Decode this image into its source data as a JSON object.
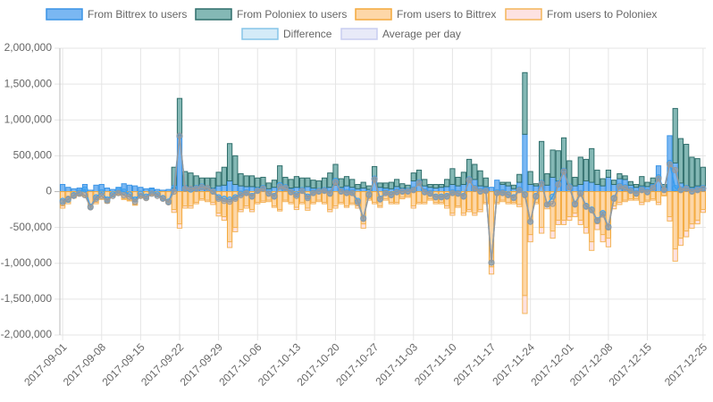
{
  "chart_data": {
    "type": "bar",
    "categories": [
      "2017-09-01",
      "2017-09-02",
      "2017-09-03",
      "2017-09-04",
      "2017-09-05",
      "2017-09-06",
      "2017-09-07",
      "2017-09-08",
      "2017-09-09",
      "2017-09-10",
      "2017-09-11",
      "2017-09-12",
      "2017-09-13",
      "2017-09-14",
      "2017-09-15",
      "2017-09-16",
      "2017-09-17",
      "2017-09-18",
      "2017-09-19",
      "2017-09-20",
      "2017-09-21",
      "2017-09-22",
      "2017-09-23",
      "2017-09-24",
      "2017-09-25",
      "2017-09-26",
      "2017-09-27",
      "2017-09-28",
      "2017-09-29",
      "2017-09-30",
      "2017-10-01",
      "2017-10-02",
      "2017-10-03",
      "2017-10-04",
      "2017-10-05",
      "2017-10-06",
      "2017-10-07",
      "2017-10-08",
      "2017-10-09",
      "2017-10-10",
      "2017-10-11",
      "2017-10-12",
      "2017-10-13",
      "2017-10-14",
      "2017-10-15",
      "2017-10-16",
      "2017-10-17",
      "2017-10-18",
      "2017-10-19",
      "2017-10-20",
      "2017-10-21",
      "2017-10-22",
      "2017-10-23",
      "2017-10-24",
      "2017-10-25",
      "2017-10-26",
      "2017-10-27",
      "2017-10-28",
      "2017-10-29",
      "2017-10-30",
      "2017-10-31",
      "2017-11-01",
      "2017-11-02",
      "2017-11-03",
      "2017-11-04",
      "2017-11-05",
      "2017-11-06",
      "2017-11-07",
      "2017-11-08",
      "2017-11-09",
      "2017-11-10",
      "2017-11-11",
      "2017-11-12",
      "2017-11-13",
      "2017-11-14",
      "2017-11-15",
      "2017-11-16",
      "2017-11-17",
      "2017-11-18",
      "2017-11-19",
      "2017-11-20",
      "2017-11-21",
      "2017-11-22",
      "2017-11-23",
      "2017-11-24",
      "2017-11-25",
      "2017-11-26",
      "2017-11-27",
      "2017-11-28",
      "2017-11-29",
      "2017-11-30",
      "2017-12-01",
      "2017-12-02",
      "2017-12-03",
      "2017-12-04",
      "2017-12-05",
      "2017-12-06",
      "2017-12-07",
      "2017-12-08",
      "2017-12-09",
      "2017-12-10",
      "2017-12-11",
      "2017-12-12",
      "2017-12-13",
      "2017-12-14",
      "2017-12-15",
      "2017-12-16",
      "2017-12-17",
      "2017-12-18",
      "2017-12-19",
      "2017-12-20",
      "2017-12-21",
      "2017-12-22",
      "2017-12-23",
      "2017-12-24",
      "2017-12-25"
    ],
    "xticks": [
      "2017-09-01",
      "2017-09-08",
      "2017-09-15",
      "2017-09-22",
      "2017-09-29",
      "2017-10-06",
      "2017-10-13",
      "2017-10-20",
      "2017-10-27",
      "2017-11-03",
      "2017-11-10",
      "2017-11-17",
      "2017-11-24",
      "2017-12-01",
      "2017-12-08",
      "2017-12-15",
      "2017-12-25"
    ],
    "ylim": [
      -2000000,
      2000000
    ],
    "yticks": [
      {
        "value": -2000000,
        "label": "-2,000,000"
      },
      {
        "value": -1500000,
        "label": "-1,500,000"
      },
      {
        "value": -1000000,
        "label": "-1,000,000"
      },
      {
        "value": -500000,
        "label": "-500,000"
      },
      0,
      {
        "value": 500000,
        "label": "500,000"
      },
      {
        "value": 1000000,
        "label": "1,000,000"
      },
      {
        "value": 1500000,
        "label": "1,500,000"
      },
      {
        "value": 2000000,
        "label": "2,000,000"
      }
    ],
    "grid": true,
    "legend": "top",
    "series": [
      {
        "name": "From Bittrex to users",
        "kind": "bar",
        "stack": "positive",
        "color": "#7ab7f2",
        "border": "#3a94e6",
        "values": [
          100000,
          60000,
          40000,
          50000,
          100000,
          20000,
          90000,
          100000,
          50000,
          30000,
          60000,
          110000,
          90000,
          80000,
          60000,
          40000,
          50000,
          30000,
          20000,
          30000,
          50000,
          780000,
          80000,
          60000,
          50000,
          60000,
          40000,
          50000,
          80000,
          90000,
          150000,
          100000,
          80000,
          70000,
          70000,
          60000,
          70000,
          40000,
          60000,
          100000,
          60000,
          50000,
          60000,
          50000,
          70000,
          50000,
          40000,
          50000,
          60000,
          90000,
          60000,
          80000,
          60000,
          40000,
          50000,
          30000,
          180000,
          60000,
          50000,
          40000,
          70000,
          50000,
          40000,
          150000,
          150000,
          80000,
          60000,
          50000,
          60000,
          70000,
          100000,
          80000,
          100000,
          150000,
          170000,
          80000,
          70000,
          60000,
          160000,
          100000,
          80000,
          40000,
          130000,
          800000,
          100000,
          80000,
          120000,
          90000,
          200000,
          150000,
          300000,
          100000,
          80000,
          100000,
          150000,
          130000,
          100000,
          80000,
          200000,
          100000,
          180000,
          170000,
          90000,
          60000,
          80000,
          70000,
          110000,
          360000,
          60000,
          780000,
          400000,
          120000,
          80000,
          60000,
          80000,
          60000
        ]
      },
      {
        "name": "From Poloniex to users",
        "kind": "bar",
        "stack": "positive",
        "color": "#84b8b5",
        "border": "#2f6e6b",
        "values": [
          0,
          0,
          0,
          0,
          0,
          0,
          0,
          0,
          0,
          0,
          0,
          0,
          0,
          0,
          0,
          0,
          0,
          0,
          0,
          0,
          290000,
          520000,
          200000,
          200000,
          170000,
          130000,
          150000,
          140000,
          190000,
          250000,
          520000,
          400000,
          170000,
          150000,
          150000,
          130000,
          130000,
          80000,
          100000,
          260000,
          140000,
          120000,
          150000,
          140000,
          120000,
          110000,
          110000,
          140000,
          200000,
          290000,
          120000,
          130000,
          110000,
          60000,
          80000,
          50000,
          170000,
          60000,
          70000,
          90000,
          100000,
          60000,
          50000,
          110000,
          150000,
          90000,
          40000,
          50000,
          40000,
          100000,
          220000,
          120000,
          170000,
          300000,
          210000,
          210000,
          120000,
          0,
          0,
          30000,
          50000,
          50000,
          110000,
          860000,
          180000,
          30000,
          580000,
          160000,
          380000,
          420000,
          450000,
          330000,
          120000,
          380000,
          300000,
          470000,
          200000,
          100000,
          100000,
          60000,
          70000,
          50000,
          50000,
          40000,
          130000,
          60000,
          80000,
          0,
          40000,
          0,
          760000,
          620000,
          580000,
          420000,
          380000,
          280000
        ]
      },
      {
        "name": "From users to Bittrex",
        "kind": "bar",
        "stack": "negative",
        "color": "#fdd7a8",
        "border": "#f4a93c",
        "values": [
          -200000,
          -150000,
          -80000,
          -50000,
          -60000,
          -200000,
          -150000,
          -100000,
          -150000,
          -60000,
          -40000,
          -100000,
          -120000,
          -180000,
          -80000,
          -100000,
          -40000,
          -60000,
          -100000,
          -150000,
          -250000,
          -450000,
          -200000,
          -200000,
          -150000,
          -100000,
          -120000,
          -150000,
          -300000,
          -350000,
          -700000,
          -500000,
          -250000,
          -200000,
          -250000,
          -150000,
          -130000,
          -120000,
          -200000,
          -250000,
          -120000,
          -150000,
          -220000,
          -150000,
          -230000,
          -150000,
          -120000,
          -150000,
          -250000,
          -200000,
          -150000,
          -200000,
          -160000,
          -200000,
          -450000,
          -100000,
          -150000,
          -200000,
          -100000,
          -150000,
          -150000,
          -80000,
          -60000,
          -200000,
          -150000,
          -150000,
          -100000,
          -150000,
          -150000,
          -200000,
          -300000,
          -200000,
          -300000,
          -250000,
          -300000,
          -250000,
          -150000,
          -1050000,
          -150000,
          -120000,
          -150000,
          -150000,
          -180000,
          -1450000,
          -600000,
          -150000,
          -500000,
          -200000,
          -550000,
          -400000,
          -400000,
          -350000,
          -300000,
          -400000,
          -500000,
          -700000,
          -450000,
          -600000,
          -650000,
          -200000,
          -150000,
          -120000,
          -100000,
          -100000,
          -150000,
          -120000,
          -100000,
          -150000,
          -50000,
          -350000,
          -800000,
          -650000,
          -550000,
          -450000,
          -400000,
          -250000
        ]
      },
      {
        "name": "From users to Poloniex",
        "kind": "bar",
        "stack": "negative",
        "color": "#fde2e2",
        "border": "#f4b55a",
        "values": [
          -30000,
          -20000,
          -10000,
          -10000,
          -10000,
          -30000,
          -20000,
          -10000,
          -10000,
          -10000,
          -10000,
          -10000,
          -10000,
          -10000,
          -10000,
          -10000,
          -10000,
          -10000,
          -10000,
          -20000,
          -40000,
          -60000,
          -30000,
          -30000,
          -20000,
          -20000,
          -20000,
          -30000,
          -40000,
          -50000,
          -80000,
          -60000,
          -30000,
          -30000,
          -30000,
          -20000,
          -20000,
          -20000,
          -20000,
          -20000,
          -20000,
          -20000,
          -30000,
          -20000,
          -30000,
          -20000,
          -20000,
          -20000,
          -30000,
          -30000,
          -20000,
          -20000,
          -20000,
          -30000,
          -60000,
          -20000,
          -20000,
          -20000,
          -20000,
          -20000,
          -20000,
          -20000,
          -20000,
          -30000,
          -20000,
          -20000,
          -20000,
          -20000,
          -20000,
          -30000,
          -30000,
          -20000,
          -30000,
          -30000,
          -30000,
          -30000,
          -20000,
          -100000,
          -20000,
          -20000,
          -20000,
          -20000,
          -30000,
          -250000,
          -100000,
          -20000,
          -80000,
          -40000,
          -100000,
          -60000,
          -60000,
          -50000,
          -50000,
          -60000,
          -80000,
          -120000,
          -80000,
          -100000,
          -120000,
          -40000,
          -30000,
          -20000,
          -20000,
          -20000,
          -30000,
          -20000,
          -20000,
          -30000,
          -10000,
          -60000,
          -170000,
          -100000,
          -80000,
          -60000,
          -50000,
          -40000
        ]
      },
      {
        "name": "Difference",
        "kind": "line",
        "color": "#d4ebf8",
        "border": "#86c5e8",
        "line_color": "#3a9ff0",
        "values": [
          -130000,
          -110000,
          -50000,
          -10000,
          30000,
          -210000,
          -80000,
          -10000,
          -110000,
          -40000,
          20000,
          0,
          -40000,
          -110000,
          -30000,
          -70000,
          0,
          -40000,
          -90000,
          -140000,
          50000,
          770000,
          50000,
          30000,
          50000,
          70000,
          50000,
          10000,
          -80000,
          -100000,
          -110000,
          -80000,
          -30000,
          -10000,
          -60000,
          20000,
          50000,
          -20000,
          -60000,
          90000,
          60000,
          0,
          -40000,
          20000,
          -70000,
          -10000,
          10000,
          20000,
          -20000,
          150000,
          10000,
          -10000,
          -10000,
          -130000,
          -370000,
          -40000,
          180000,
          -100000,
          -10000,
          -40000,
          0,
          10000,
          10000,
          30000,
          130000,
          0,
          -20000,
          -70000,
          -70000,
          -60000,
          -10000,
          -20000,
          -60000,
          170000,
          50000,
          10000,
          20000,
          -990000,
          -10000,
          -10000,
          -40000,
          -80000,
          30000,
          -40000,
          -420000,
          -60000,
          120000,
          -180000,
          -70000,
          110000,
          290000,
          70000,
          -170000,
          -20000,
          -200000,
          -250000,
          -400000,
          -300000,
          -490000,
          -90000,
          80000,
          60000,
          20000,
          -20000,
          30000,
          0,
          60000,
          200000,
          30000,
          400000,
          50000,
          30000,
          50000,
          10000,
          30000,
          50000
        ]
      },
      {
        "name": "Average per day",
        "kind": "line",
        "color": "#e8eaf8",
        "border": "#c8cdf0",
        "line_color": "#9a9a9a",
        "values": [
          -150000,
          -100000,
          -60000,
          -30000,
          -50000,
          -220000,
          -100000,
          -60000,
          -130000,
          -60000,
          -20000,
          -50000,
          -70000,
          -140000,
          -60000,
          -90000,
          -30000,
          -60000,
          -100000,
          -150000,
          0,
          780000,
          40000,
          40000,
          40000,
          60000,
          50000,
          0,
          -100000,
          -130000,
          -140000,
          -100000,
          -50000,
          -20000,
          -70000,
          10000,
          40000,
          -30000,
          -70000,
          70000,
          50000,
          -10000,
          -60000,
          10000,
          -90000,
          -20000,
          0,
          10000,
          -30000,
          130000,
          0,
          -20000,
          -20000,
          -150000,
          -380000,
          -50000,
          170000,
          -110000,
          -20000,
          -50000,
          -10000,
          0,
          0,
          20000,
          120000,
          -10000,
          -30000,
          -80000,
          -80000,
          -70000,
          -20000,
          -30000,
          -70000,
          160000,
          40000,
          0,
          10000,
          -990000,
          -20000,
          -20000,
          -50000,
          -90000,
          20000,
          -50000,
          -420000,
          -70000,
          110000,
          -180000,
          -170000,
          100000,
          280000,
          60000,
          -180000,
          -30000,
          -210000,
          -260000,
          -410000,
          -320000,
          -500000,
          -100000,
          70000,
          50000,
          10000,
          -30000,
          20000,
          -10000,
          50000,
          180000,
          20000,
          380000,
          300000,
          20000,
          40000,
          0,
          20000,
          40000
        ]
      }
    ]
  }
}
